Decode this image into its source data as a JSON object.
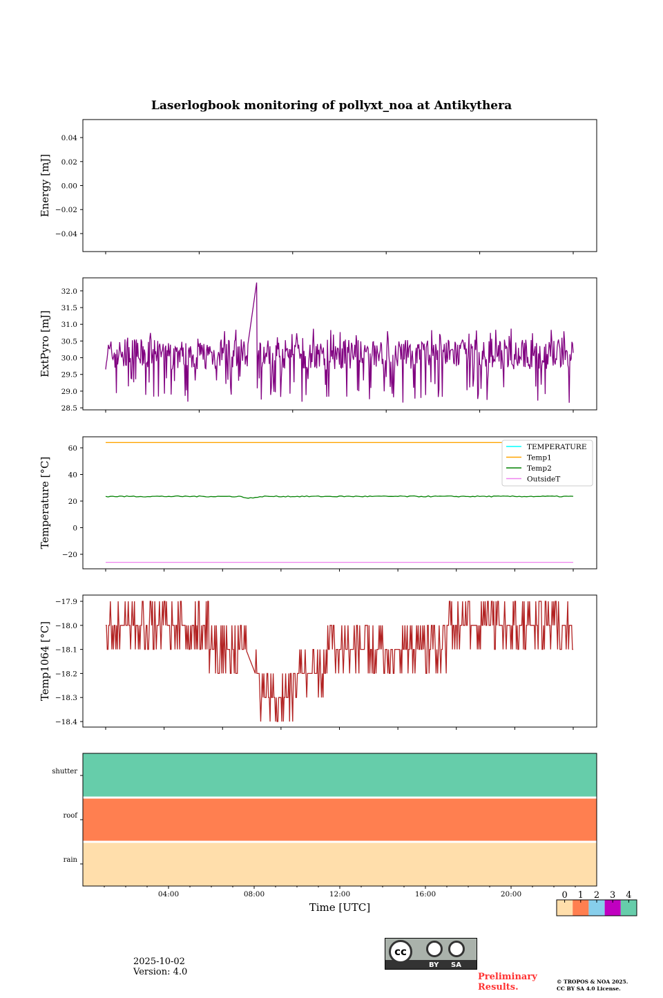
{
  "title": "Laserlogbook monitoring of pollyxt_noa at Antikythera",
  "chart_data": [
    {
      "type": "line",
      "name": "energy",
      "ylabel": "Energy [mJ]",
      "ylim": [
        -0.055,
        0.055
      ],
      "yticks": [
        "0.04",
        "0.02",
        "0.00",
        "−0.02",
        "−0.04"
      ],
      "ytick_values": [
        0.04,
        0.02,
        0,
        -0.02,
        -0.04
      ],
      "series": []
    },
    {
      "type": "line",
      "name": "extpyro",
      "ylabel": "ExtPyro [mJ]",
      "ylim": [
        28.44,
        32.39
      ],
      "yticks": [
        "32.0",
        "31.5",
        "31.0",
        "30.5",
        "30.0",
        "29.5",
        "29.0",
        "28.5"
      ],
      "ytick_values": [
        32,
        31.5,
        31,
        30.5,
        30,
        29.5,
        29,
        28.5
      ],
      "series": [
        {
          "name": "ExtPyro",
          "color": "#800080",
          "mean": 30.0,
          "min": 28.65,
          "max": 30.9,
          "spike": 32.25,
          "gap": [
            0.305,
            0.322
          ]
        }
      ]
    },
    {
      "type": "line",
      "name": "temperature",
      "ylabel": "Temperature [°C]",
      "ylim": [
        -30.9,
        68.3
      ],
      "yticks": [
        "60",
        "40",
        "20",
        "0",
        "−20"
      ],
      "ytick_values": [
        60,
        40,
        20,
        0,
        -20
      ],
      "legend": "top-right",
      "series": [
        {
          "name": "TEMPERATURE",
          "color": "#00ffff",
          "value": null
        },
        {
          "name": "Temp1",
          "color": "#ffa500",
          "value": 64
        },
        {
          "name": "Temp2",
          "color": "#008000",
          "value": 23.5
        },
        {
          "name": "OutsideT",
          "color": "#ee82ee",
          "value": -26
        }
      ]
    },
    {
      "type": "line",
      "name": "temp1064",
      "ylabel": "Temp1064 [°C]",
      "ylim": [
        -18.423,
        -17.874
      ],
      "yticks": [
        "−17.9",
        "−18.0",
        "−18.1",
        "−18.2",
        "−18.3",
        "−18.4"
      ],
      "ytick_values": [
        -17.9,
        -18,
        -18.1,
        -18.2,
        -18.3,
        -18.4
      ],
      "series": [
        {
          "name": "Temp1064",
          "color": "#b22222",
          "levels": [
            [
              0,
              -18.0
            ],
            [
              0.18,
              -18.0
            ],
            [
              0.22,
              -18.1
            ],
            [
              0.31,
              -18.2
            ],
            [
              0.33,
              -18.3
            ],
            [
              0.4,
              -18.2
            ],
            [
              0.47,
              -18.1
            ],
            [
              0.73,
              -18.0
            ],
            [
              1,
              -18.0
            ]
          ]
        }
      ]
    },
    {
      "type": "heatmap",
      "name": "status",
      "rows": [
        "shutter",
        "roof",
        "rain"
      ],
      "values": [
        4,
        1,
        0
      ],
      "xlabel": "Time [UTC]",
      "xticks": [
        "04:00",
        "08:00",
        "12:00",
        "16:00",
        "20:00"
      ],
      "xtick_hours": [
        4,
        8,
        12,
        16,
        20
      ],
      "xlim_hours": [
        0,
        24
      ],
      "colorbar": {
        "labels": [
          "0",
          "1",
          "2",
          "3",
          "4"
        ],
        "colors": [
          "#ffdeab",
          "#ff7f50",
          "#87ceeb",
          "#c000c0",
          "#66cdaa"
        ]
      }
    }
  ],
  "footer": {
    "date": "2025-10-02",
    "version": "Version: 4.0",
    "preliminary": "Preliminary\nResults.",
    "prelim_line1": "Preliminary",
    "prelim_line2": "Results.",
    "copyright1": "© TROPOS & NOA 2025.",
    "copyright2": "CC BY SA 4.0 License.",
    "cc_by": "BY",
    "cc_sa": "SA",
    "cc": "cc"
  }
}
